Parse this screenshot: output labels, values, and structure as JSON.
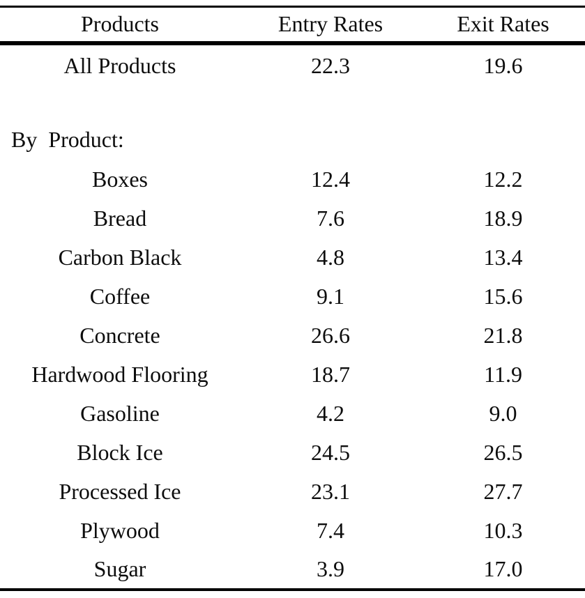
{
  "table": {
    "columns": [
      "Products",
      "Entry Rates",
      "Exit Rates"
    ],
    "summary_row": {
      "product": "All Products",
      "entry": "22.3",
      "exit": "19.6"
    },
    "section_label": "By  Product:",
    "rows": [
      {
        "product": "Boxes",
        "entry": "12.4",
        "exit": "12.2"
      },
      {
        "product": "Bread",
        "entry": "7.6",
        "exit": "18.9"
      },
      {
        "product": "Carbon Black",
        "entry": "4.8",
        "exit": "13.4"
      },
      {
        "product": "Coffee",
        "entry": "9.1",
        "exit": "15.6"
      },
      {
        "product": "Concrete",
        "entry": "26.6",
        "exit": "21.8"
      },
      {
        "product": "Hardwood Flooring",
        "entry": "18.7",
        "exit": "11.9"
      },
      {
        "product": "Gasoline",
        "entry": "4.2",
        "exit": "9.0"
      },
      {
        "product": "Block Ice",
        "entry": "24.5",
        "exit": "26.5"
      },
      {
        "product": "Processed Ice",
        "entry": "23.1",
        "exit": "27.7"
      },
      {
        "product": "Plywood",
        "entry": "7.4",
        "exit": "10.3"
      },
      {
        "product": "Sugar",
        "entry": "3.9",
        "exit": "17.0"
      }
    ]
  },
  "colors": {
    "background": "#ffffff",
    "text": "#0d0d0d",
    "rule": "#000000"
  }
}
